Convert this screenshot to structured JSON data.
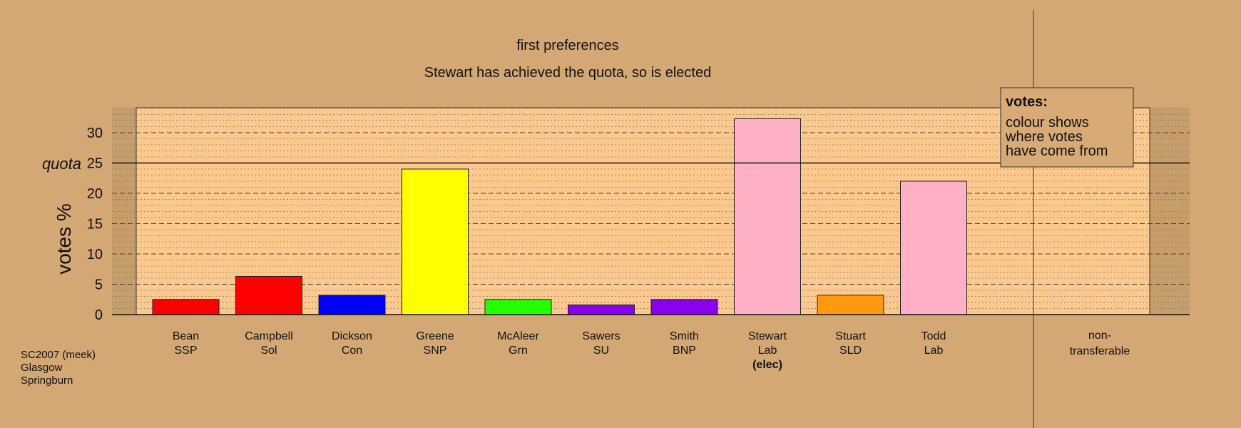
{
  "chart_data": {
    "type": "bar",
    "title": "first preferences",
    "subtitle": "Stewart has achieved the quota, so is elected",
    "ylabel": "votes %",
    "ylim": [
      0,
      34
    ],
    "yticks": [
      0,
      5,
      10,
      15,
      20,
      25,
      30
    ],
    "quota": {
      "label": "quota",
      "value": 25
    },
    "grid": true,
    "categories": [
      {
        "name": "Bean",
        "party": "SSP",
        "value": 2.5,
        "color": "#ff0000"
      },
      {
        "name": "Campbell",
        "party": "Sol",
        "value": 6.3,
        "color": "#ff0000"
      },
      {
        "name": "Dickson",
        "party": "Con",
        "value": 3.2,
        "color": "#0000ff"
      },
      {
        "name": "Greene",
        "party": "SNP",
        "value": 24.0,
        "color": "#ffff00"
      },
      {
        "name": "McAleer",
        "party": "Grn",
        "value": 2.5,
        "color": "#22ff00"
      },
      {
        "name": "Sawers",
        "party": "SU",
        "value": 1.6,
        "color": "#8800ee"
      },
      {
        "name": "Smith",
        "party": "BNP",
        "value": 2.5,
        "color": "#8800ee"
      },
      {
        "name": "Stewart",
        "party": "Lab",
        "value": 32.3,
        "color": "#ffb0c4",
        "status": "(elec)"
      },
      {
        "name": "Stuart",
        "party": "SLD",
        "value": 3.2,
        "color": "#ff9910"
      },
      {
        "name": "Todd",
        "party": "Lab",
        "value": 22.0,
        "color": "#ffb0c4"
      }
    ],
    "nontransferable": {
      "line1": "non-",
      "line2": "transferable"
    },
    "legend": {
      "placement": "top-right",
      "title": "votes:",
      "lines": [
        "colour shows",
        "where votes",
        "have come from"
      ]
    },
    "footnote": [
      "SC2007 (meek)",
      "Glasgow",
      "Springburn"
    ]
  }
}
